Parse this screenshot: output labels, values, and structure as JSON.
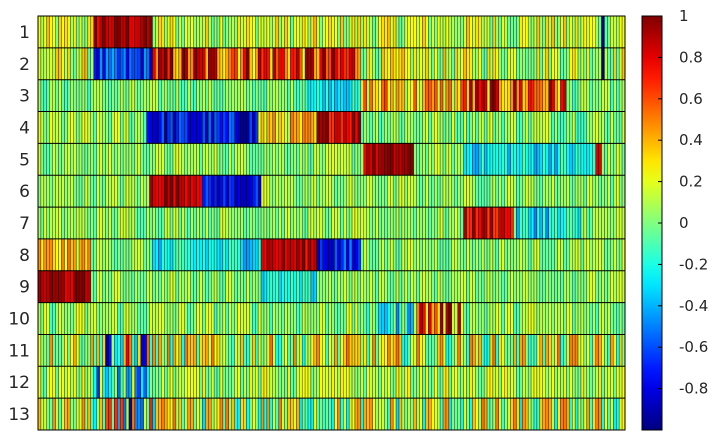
{
  "chart_data": {
    "type": "heatmap",
    "title": "",
    "xlabel": "",
    "ylabel": "",
    "row_labels": [
      "1",
      "2",
      "3",
      "4",
      "5",
      "6",
      "7",
      "8",
      "9",
      "10",
      "11",
      "12",
      "13"
    ],
    "column_count": 200,
    "value_range": [
      -1,
      1
    ],
    "colormap": "jet",
    "colorbar": {
      "position": "right",
      "ticks": [
        1,
        0.8,
        0.6,
        0.4,
        0.2,
        0,
        -0.2,
        -0.4,
        -0.6,
        -0.8
      ],
      "tick_labels": [
        "1",
        "0.8",
        "0.6",
        "0.4",
        "0.2",
        "0",
        "-0.2",
        "-0.4",
        "-0.6",
        "-0.8"
      ]
    },
    "grid": true,
    "cell_border_color": "#000000",
    "row_segments": [
      [
        {
          "from": 0,
          "to": 19,
          "base": 0.15,
          "noise": 0.25
        },
        {
          "from": 19,
          "to": 39,
          "base": 0.9,
          "noise": 0.2
        },
        {
          "from": 39,
          "to": 192,
          "base": 0.15,
          "noise": 0.25
        },
        {
          "from": 192,
          "to": 193,
          "base": -1.0,
          "noise": 0.0
        },
        {
          "from": 193,
          "to": 200,
          "base": 0.15,
          "noise": 0.25
        }
      ],
      [
        {
          "from": 0,
          "to": 19,
          "base": 0.15,
          "noise": 0.25
        },
        {
          "from": 19,
          "to": 39,
          "base": -0.65,
          "noise": 0.25
        },
        {
          "from": 39,
          "to": 110,
          "base": 0.65,
          "noise": 0.45
        },
        {
          "from": 110,
          "to": 192,
          "base": 0.15,
          "noise": 0.25
        },
        {
          "from": 192,
          "to": 193,
          "base": -1.0,
          "noise": 0.0
        },
        {
          "from": 193,
          "to": 200,
          "base": 0.15,
          "noise": 0.25
        }
      ],
      [
        {
          "from": 0,
          "to": 92,
          "base": 0.0,
          "noise": 0.15
        },
        {
          "from": 92,
          "to": 110,
          "base": -0.25,
          "noise": 0.15
        },
        {
          "from": 110,
          "to": 145,
          "base": 0.35,
          "noise": 0.35
        },
        {
          "from": 145,
          "to": 180,
          "base": 0.6,
          "noise": 0.45
        },
        {
          "from": 180,
          "to": 200,
          "base": 0.0,
          "noise": 0.15
        }
      ],
      [
        {
          "from": 0,
          "to": 37,
          "base": 0.05,
          "noise": 0.2
        },
        {
          "from": 37,
          "to": 75,
          "base": -0.75,
          "noise": 0.25
        },
        {
          "from": 75,
          "to": 95,
          "base": 0.3,
          "noise": 0.25
        },
        {
          "from": 95,
          "to": 110,
          "base": 0.85,
          "noise": 0.2
        },
        {
          "from": 110,
          "to": 200,
          "base": 0.05,
          "noise": 0.2
        }
      ],
      [
        {
          "from": 0,
          "to": 111,
          "base": 0.05,
          "noise": 0.15
        },
        {
          "from": 111,
          "to": 128,
          "base": 0.9,
          "noise": 0.15
        },
        {
          "from": 128,
          "to": 145,
          "base": 0.05,
          "noise": 0.15
        },
        {
          "from": 145,
          "to": 190,
          "base": -0.25,
          "noise": 0.2
        },
        {
          "from": 190,
          "to": 192,
          "base": 0.8,
          "noise": 0.1
        },
        {
          "from": 192,
          "to": 200,
          "base": 0.05,
          "noise": 0.15
        }
      ],
      [
        {
          "from": 0,
          "to": 38,
          "base": 0.05,
          "noise": 0.15
        },
        {
          "from": 38,
          "to": 56,
          "base": 0.9,
          "noise": 0.15
        },
        {
          "from": 56,
          "to": 76,
          "base": -0.75,
          "noise": 0.2
        },
        {
          "from": 76,
          "to": 200,
          "base": 0.05,
          "noise": 0.15
        }
      ],
      [
        {
          "from": 0,
          "to": 145,
          "base": 0.05,
          "noise": 0.15
        },
        {
          "from": 145,
          "to": 162,
          "base": 0.8,
          "noise": 0.2
        },
        {
          "from": 162,
          "to": 185,
          "base": -0.25,
          "noise": 0.25
        },
        {
          "from": 185,
          "to": 200,
          "base": 0.05,
          "noise": 0.15
        }
      ],
      [
        {
          "from": 0,
          "to": 18,
          "base": 0.35,
          "noise": 0.2
        },
        {
          "from": 18,
          "to": 38,
          "base": 0.05,
          "noise": 0.15
        },
        {
          "from": 38,
          "to": 76,
          "base": -0.25,
          "noise": 0.2
        },
        {
          "from": 76,
          "to": 95,
          "base": 0.85,
          "noise": 0.15
        },
        {
          "from": 95,
          "to": 110,
          "base": -0.7,
          "noise": 0.25
        },
        {
          "from": 110,
          "to": 200,
          "base": 0.05,
          "noise": 0.15
        }
      ],
      [
        {
          "from": 0,
          "to": 18,
          "base": 0.9,
          "noise": 0.15
        },
        {
          "from": 18,
          "to": 76,
          "base": 0.05,
          "noise": 0.15
        },
        {
          "from": 76,
          "to": 95,
          "base": -0.25,
          "noise": 0.15
        },
        {
          "from": 95,
          "to": 200,
          "base": 0.05,
          "noise": 0.15
        }
      ],
      [
        {
          "from": 0,
          "to": 112,
          "base": 0.05,
          "noise": 0.2
        },
        {
          "from": 112,
          "to": 128,
          "base": -0.2,
          "noise": 0.3
        },
        {
          "from": 128,
          "to": 145,
          "base": 0.55,
          "noise": 0.5
        },
        {
          "from": 145,
          "to": 200,
          "base": 0.05,
          "noise": 0.2
        }
      ],
      [
        {
          "from": 0,
          "to": 20,
          "base": 0.2,
          "noise": 0.35
        },
        {
          "from": 20,
          "to": 40,
          "base": -0.1,
          "noise": 0.9
        },
        {
          "from": 40,
          "to": 200,
          "base": 0.15,
          "noise": 0.4
        }
      ],
      [
        {
          "from": 0,
          "to": 19,
          "base": 0.1,
          "noise": 0.2
        },
        {
          "from": 19,
          "to": 38,
          "base": -0.3,
          "noise": 0.6
        },
        {
          "from": 38,
          "to": 200,
          "base": 0.1,
          "noise": 0.2
        }
      ],
      [
        {
          "from": 0,
          "to": 19,
          "base": 0.15,
          "noise": 0.35
        },
        {
          "from": 19,
          "to": 40,
          "base": -0.1,
          "noise": 0.8
        },
        {
          "from": 40,
          "to": 200,
          "base": 0.1,
          "noise": 0.45
        }
      ]
    ]
  }
}
